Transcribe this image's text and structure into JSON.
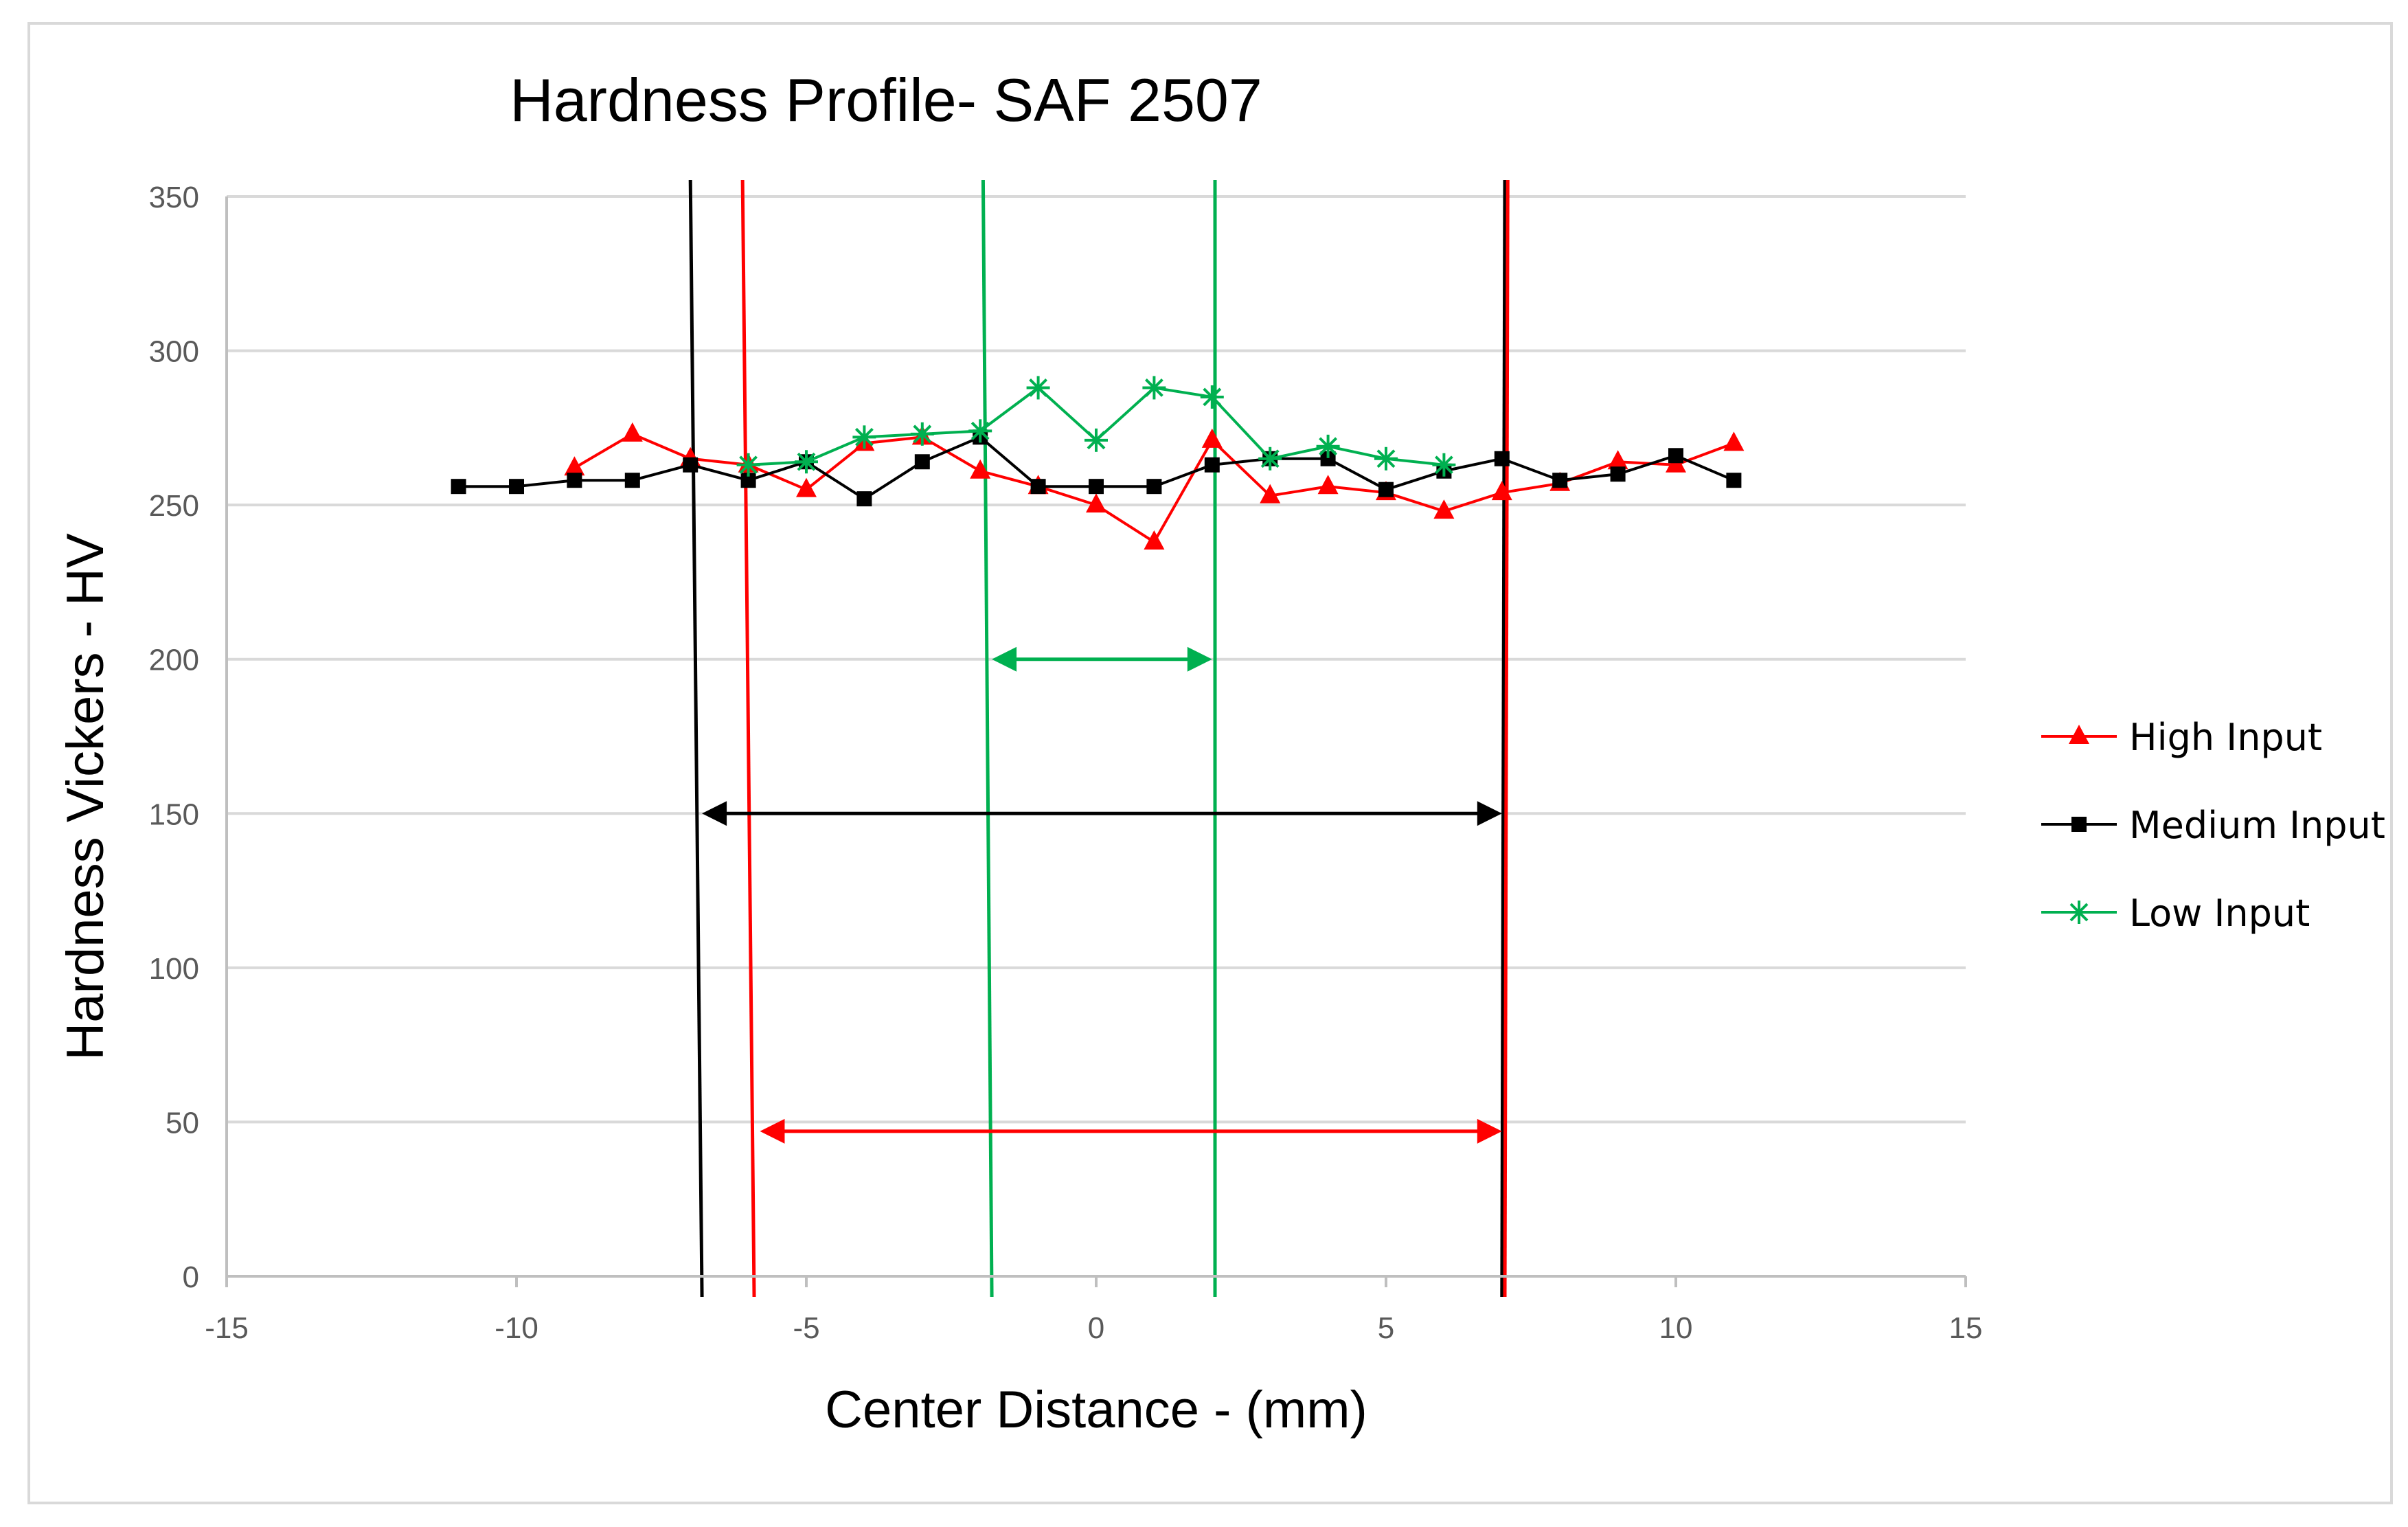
{
  "chart_data": {
    "type": "line",
    "title": "Hardness Profile- SAF 2507",
    "xlabel": "Center Distance - (mm)",
    "ylabel": "Hardness Vickers - HV",
    "xlim": [
      -15,
      15
    ],
    "ylim": [
      0,
      350
    ],
    "xticks": [
      -15,
      -10,
      -5,
      0,
      5,
      10,
      15
    ],
    "yticks": [
      0,
      50,
      100,
      150,
      200,
      250,
      300,
      350
    ],
    "grid": true,
    "legend_position": "right",
    "series": [
      {
        "name": "High Input",
        "color": "#ff0000",
        "marker": "triangle",
        "x": [
          -9,
          -8,
          -7,
          -6,
          -5,
          -4,
          -3,
          -2,
          -1,
          0,
          1,
          2,
          3,
          4,
          5,
          6,
          7,
          8,
          9,
          10,
          11
        ],
        "values": [
          262,
          273,
          265,
          263,
          255,
          270,
          272,
          261,
          256,
          250,
          238,
          271,
          253,
          256,
          254,
          248,
          254,
          257,
          264,
          263,
          270
        ]
      },
      {
        "name": "Medium Input",
        "color": "#000000",
        "marker": "square",
        "x": [
          -11,
          -10,
          -9,
          -8,
          -7,
          -6,
          -5,
          -4,
          -3,
          -2,
          -1,
          0,
          1,
          2,
          3,
          4,
          5,
          6,
          7,
          8,
          9,
          10,
          11
        ],
        "values": [
          256,
          256,
          258,
          258,
          263,
          258,
          264,
          252,
          264,
          272,
          256,
          256,
          256,
          263,
          265,
          265,
          255,
          261,
          265,
          258,
          260,
          266,
          258
        ]
      },
      {
        "name": "Low Input",
        "color": "#00b050",
        "marker": "asterisk",
        "x": [
          -6,
          -5,
          -4,
          -3,
          -2,
          -1,
          0,
          1,
          2,
          3,
          4,
          5,
          6
        ],
        "values": [
          263,
          264,
          272,
          273,
          274,
          288,
          271,
          288,
          285,
          265,
          269,
          265,
          263
        ]
      }
    ],
    "zone_lines": [
      {
        "name": "Medium Input boundary",
        "color": "#000000",
        "x_top": -7,
        "x_bottom": -6.8
      },
      {
        "name": "High Input boundary",
        "color": "#ff0000",
        "x_top": -6.1,
        "x_bottom": -5.9
      },
      {
        "name": "Low Input boundary",
        "color": "#00b050",
        "x_top": -1.95,
        "x_bottom": -1.8
      },
      {
        "name": "Low Input boundary",
        "color": "#00b050",
        "x_top": 2.05,
        "x_bottom": 2.05
      },
      {
        "name": "Medium Input boundary",
        "color": "#000000",
        "x_top": 7.05,
        "x_bottom": 7.0
      },
      {
        "name": "High Input boundary",
        "color": "#ff0000",
        "x_top": 7.1,
        "x_bottom": 7.05
      }
    ],
    "width_arrows": [
      {
        "name": "Low Input width",
        "color": "#00b050",
        "from": -1.8,
        "to": 2.0,
        "y": 200
      },
      {
        "name": "Medium Input width",
        "color": "#000000",
        "from": -6.8,
        "to": 7.0,
        "y": 150
      },
      {
        "name": "High Input width",
        "color": "#ff0000",
        "from": -5.8,
        "to": 7.0,
        "y": 47
      }
    ]
  }
}
